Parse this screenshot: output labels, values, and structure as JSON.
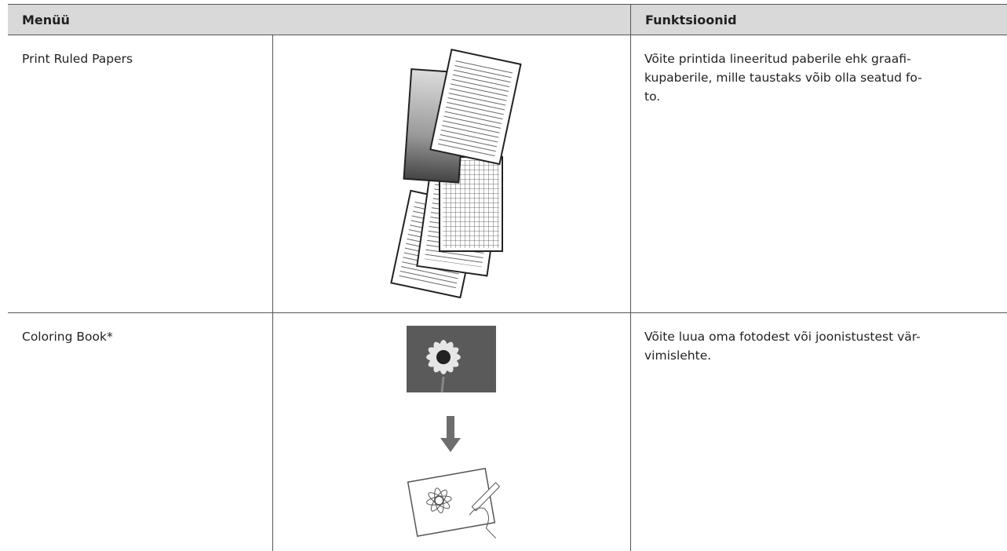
{
  "table": {
    "header": [
      "Menüü",
      "Funktsioonid"
    ],
    "rows": [
      {
        "menu": "Print Ruled Papers",
        "description": [
          "Võite printida lineeritud paberile ehk graafi-",
          "kupaberile, mille taustaks võib olla seatud fo-",
          "to."
        ]
      },
      {
        "menu": "Coloring Book*",
        "description": [
          "Võite luua oma fotodest või joonistustest vär-",
          "vimislehte."
        ]
      }
    ]
  }
}
